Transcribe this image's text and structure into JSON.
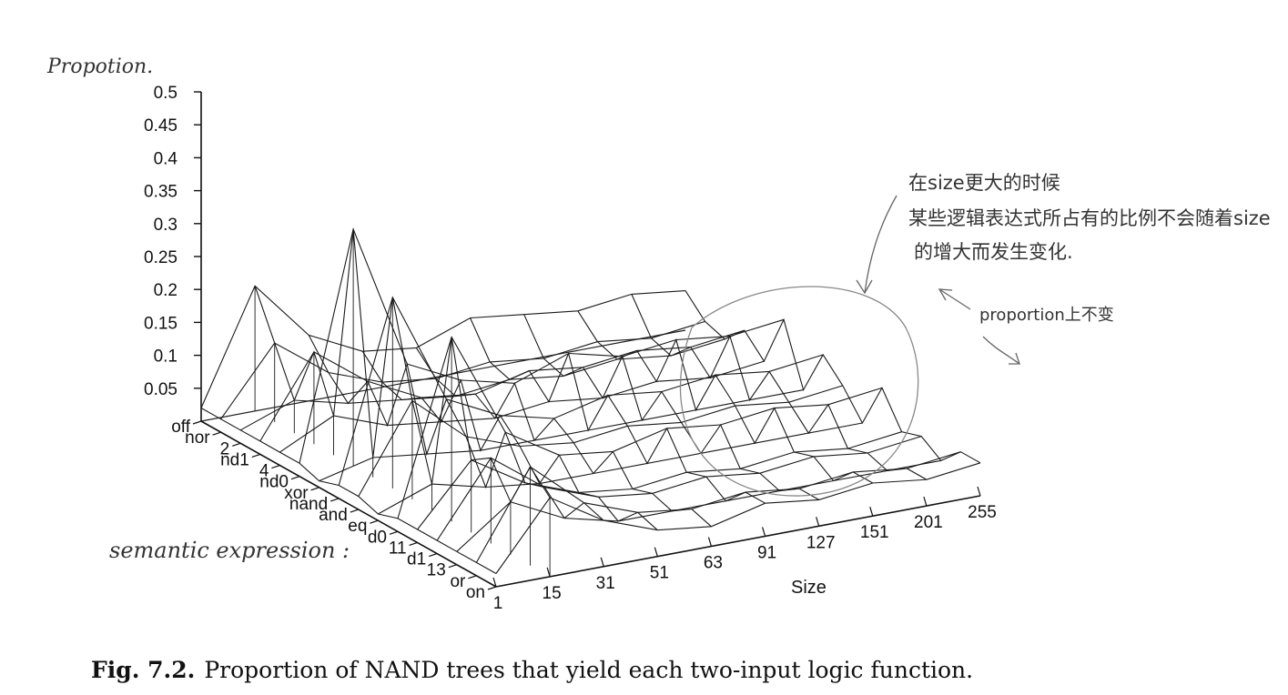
{
  "figure": {
    "caption_label": "Fig. 7.2.",
    "caption_text": "Proportion of NAND trees that yield each two-input logic function."
  },
  "annotations": {
    "y_axis_note": "Propotion.",
    "z_axis_note": "semantic expression :",
    "note_size_line1": "在size更大的时候",
    "note_size_line2": "某些逻辑表达式所占有的比例不会随着size",
    "note_size_line3": "的增大而发生变化.",
    "note_proportion": "proportion上不变"
  },
  "chart_data": {
    "type": "3d-line",
    "title": "",
    "ylabel": "",
    "xlabel": "Size",
    "ylim": [
      0,
      0.5
    ],
    "y_ticks": [
      "0.5",
      "0.45",
      "0.4",
      "0.35",
      "0.3",
      "0.25",
      "0.2",
      "0.15",
      "0.1",
      "0.05"
    ],
    "x_ticks": [
      "1",
      "15",
      "31",
      "51",
      "63",
      "91",
      "127",
      "151",
      "201",
      "255"
    ],
    "z_categories": [
      "off",
      "nor",
      "2",
      "nd1",
      "4",
      "nd0",
      "xor",
      "nand",
      "and",
      "eq",
      "d0",
      "11",
      "d1",
      "13",
      "or",
      "on"
    ],
    "grid": false,
    "series": [
      {
        "values": [
          0.02,
          0.19,
          0.1,
          0.06,
          0.05,
          0.08,
          0.07,
          0.06,
          0.07,
          0.06,
          0.07,
          0.06,
          0.07,
          0.06,
          0.07,
          0.06
        ]
      },
      {
        "values": [
          0.02,
          0.12,
          0.06,
          0.03,
          0.02,
          0.03,
          0.02,
          0.03,
          0.02,
          0.03,
          0.02,
          0.03,
          0.02,
          0.03,
          0.02,
          0.03
        ]
      },
      {
        "values": [
          0.02,
          0.05,
          0.03,
          0.02,
          0.01,
          0.02,
          0.01,
          0.02,
          0.01,
          0.02,
          0.01,
          0.02,
          0.01,
          0.02,
          0.01,
          0.02
        ]
      },
      {
        "values": [
          0.02,
          0.14,
          0.08,
          0.04,
          0.03,
          0.05,
          0.04,
          0.05,
          0.04,
          0.05,
          0.04,
          0.05,
          0.04,
          0.05,
          0.04,
          0.05
        ]
      },
      {
        "values": [
          0.02,
          0.06,
          0.03,
          0.02,
          0.01,
          0.02,
          0.01,
          0.02,
          0.01,
          0.02,
          0.01,
          0.02,
          0.01,
          0.02,
          0.01,
          0.02
        ]
      },
      {
        "values": [
          0.02,
          0.36,
          0.14,
          0.1,
          0.08,
          0.11,
          0.09,
          0.1,
          0.09,
          0.1,
          0.09,
          0.1,
          0.09,
          0.1,
          0.09,
          0.1
        ]
      },
      {
        "values": [
          0.01,
          0.03,
          0.02,
          0.01,
          0.01,
          0.01,
          0.01,
          0.01,
          0.01,
          0.01,
          0.01,
          0.01,
          0.01,
          0.01,
          0.01,
          0.01
        ]
      },
      {
        "values": [
          0.02,
          0.29,
          0.12,
          0.08,
          0.06,
          0.08,
          0.07,
          0.08,
          0.07,
          0.08,
          0.07,
          0.08,
          0.07,
          0.08,
          0.07,
          0.08
        ]
      },
      {
        "values": [
          0.02,
          0.15,
          0.08,
          0.05,
          0.04,
          0.05,
          0.04,
          0.05,
          0.04,
          0.05,
          0.04,
          0.05,
          0.04,
          0.05,
          0.04,
          0.05
        ]
      },
      {
        "values": [
          0.01,
          0.04,
          0.02,
          0.01,
          0.01,
          0.01,
          0.01,
          0.01,
          0.01,
          0.01,
          0.01,
          0.01,
          0.01,
          0.01,
          0.01,
          0.01
        ]
      },
      {
        "values": [
          0.02,
          0.28,
          0.12,
          0.07,
          0.06,
          0.08,
          0.07,
          0.08,
          0.07,
          0.08,
          0.07,
          0.08,
          0.07,
          0.08,
          0.07,
          0.08
        ]
      },
      {
        "values": [
          0.02,
          0.11,
          0.06,
          0.03,
          0.02,
          0.03,
          0.02,
          0.03,
          0.02,
          0.03,
          0.02,
          0.03,
          0.02,
          0.03,
          0.02,
          0.03
        ]
      },
      {
        "values": [
          0.02,
          0.13,
          0.07,
          0.04,
          0.03,
          0.04,
          0.03,
          0.04,
          0.03,
          0.04,
          0.03,
          0.04,
          0.03,
          0.04,
          0.03,
          0.04
        ]
      },
      {
        "values": [
          0.02,
          0.08,
          0.04,
          0.02,
          0.02,
          0.02,
          0.02,
          0.02,
          0.02,
          0.02,
          0.02,
          0.02,
          0.02,
          0.02,
          0.02,
          0.02
        ]
      },
      {
        "values": [
          0.02,
          0.15,
          0.08,
          0.05,
          0.04,
          0.05,
          0.04,
          0.05,
          0.04,
          0.05,
          0.04,
          0.05,
          0.04,
          0.05,
          0.04,
          0.05
        ]
      },
      {
        "values": [
          0.02,
          0.12,
          0.07,
          0.04,
          0.03,
          0.05,
          0.04,
          0.05,
          0.04,
          0.05,
          0.04,
          0.05,
          0.04,
          0.05,
          0.04,
          0.05
        ]
      }
    ]
  }
}
